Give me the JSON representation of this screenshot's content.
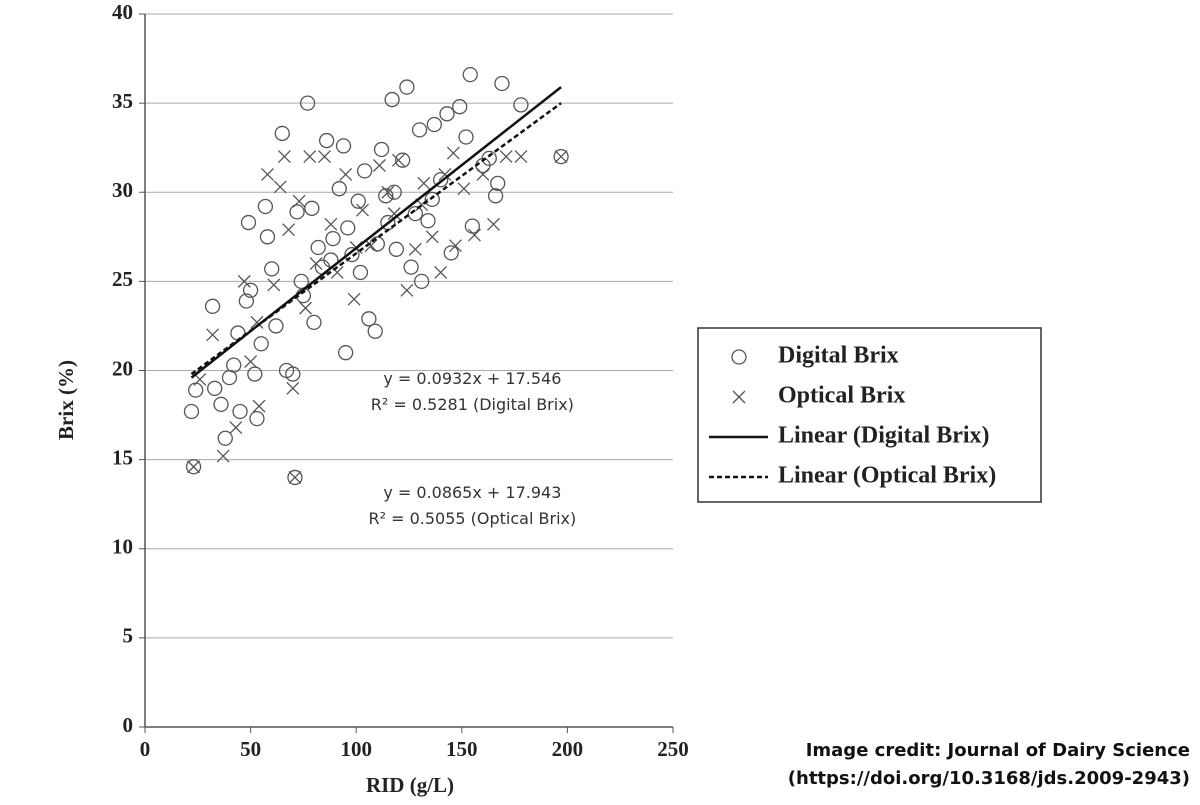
{
  "chart_data": {
    "type": "scatter",
    "x_label": "RID (g/L)",
    "y_label": "Brix (%)",
    "xlim": [
      0,
      250
    ],
    "xticks": [
      0,
      50,
      100,
      150,
      200,
      250
    ],
    "ylim": [
      0,
      40
    ],
    "yticks": [
      0,
      5,
      10,
      15,
      20,
      25,
      30,
      35,
      40
    ],
    "grid": true,
    "legend": "right",
    "series": [
      {
        "name": "Digital Brix",
        "marker": "circle",
        "color": "#555555",
        "x": [
          23,
          22,
          24,
          32,
          33,
          36,
          38,
          40,
          42,
          44,
          45,
          48,
          49,
          50,
          52,
          53,
          55,
          57,
          58,
          60,
          62,
          65,
          67,
          70,
          71,
          72,
          75,
          77,
          79,
          80,
          84,
          86,
          89,
          92,
          94,
          95,
          98,
          101,
          104,
          106,
          109,
          112,
          114,
          117,
          119,
          122,
          124,
          126,
          130,
          131,
          134,
          137,
          140,
          143,
          145,
          149,
          152,
          154,
          155,
          160,
          163,
          166,
          167,
          169,
          178,
          197,
          88,
          96,
          110,
          118,
          128,
          136,
          74,
          82,
          102,
          115
        ],
        "values": [
          14.6,
          17.7,
          18.9,
          23.6,
          19.0,
          18.1,
          16.2,
          19.6,
          20.3,
          22.1,
          17.7,
          23.9,
          28.3,
          24.5,
          19.8,
          17.3,
          21.5,
          29.2,
          27.5,
          25.7,
          22.5,
          33.3,
          20.0,
          19.8,
          14.0,
          28.9,
          24.2,
          35.0,
          29.1,
          22.7,
          25.8,
          32.9,
          27.4,
          30.2,
          32.6,
          21.0,
          26.5,
          29.5,
          31.2,
          22.9,
          22.2,
          32.4,
          29.8,
          35.2,
          26.8,
          31.8,
          35.9,
          25.8,
          33.5,
          25.0,
          28.4,
          33.8,
          30.7,
          34.4,
          26.6,
          34.8,
          33.1,
          36.6,
          28.1,
          31.5,
          31.9,
          29.8,
          30.5,
          36.1,
          34.9,
          32.0,
          26.2,
          28.0,
          27.1,
          30.0,
          28.8,
          29.6,
          25.0,
          26.9,
          25.5,
          28.3
        ]
      },
      {
        "name": "Optical Brix",
        "marker": "x",
        "color": "#555555",
        "x": [
          23,
          32,
          37,
          43,
          47,
          50,
          54,
          58,
          61,
          64,
          66,
          70,
          73,
          76,
          78,
          81,
          85,
          88,
          91,
          95,
          99,
          103,
          107,
          111,
          115,
          120,
          124,
          128,
          132,
          136,
          140,
          142,
          147,
          151,
          156,
          160,
          165,
          171,
          178,
          197,
          71,
          26,
          53,
          68,
          100,
          118,
          131,
          146
        ],
        "values": [
          14.6,
          22.0,
          15.2,
          16.8,
          25.0,
          20.5,
          18.0,
          31.0,
          24.8,
          30.3,
          32.0,
          19.0,
          29.5,
          23.5,
          32.0,
          26.0,
          32.0,
          28.2,
          25.5,
          31.0,
          24.0,
          29.0,
          27.0,
          31.5,
          30.0,
          31.8,
          24.5,
          26.8,
          30.5,
          27.5,
          25.5,
          31.0,
          27.0,
          30.2,
          27.6,
          31.0,
          28.2,
          32.0,
          32.0,
          32.0,
          14.0,
          19.5,
          22.7,
          27.9,
          26.9,
          28.8,
          29.3,
          32.2
        ]
      },
      {
        "name": "Linear (Digital Brix)",
        "marker": "line",
        "dash": "none",
        "color": "#111111",
        "x": [
          22,
          197
        ],
        "values": [
          19.6,
          35.9
        ]
      },
      {
        "name": "Linear (Optical Brix)",
        "marker": "line",
        "dash": "5,3",
        "color": "#111111",
        "x": [
          22,
          197
        ],
        "values": [
          19.8,
          35.0
        ]
      }
    ],
    "annotations": [
      {
        "lines": [
          "y = 0.0932x + 17.546",
          "R² = 0.5281 (Digital Brix)"
        ],
        "x": 155,
        "y": 19.5
      },
      {
        "lines": [
          "y = 0.0865x + 17.943",
          "R² = 0.5055 (Optical Brix)"
        ],
        "x": 155,
        "y": 13.1
      }
    ]
  },
  "credit": [
    "Image credit: Journal of Dairy Science",
    "(https://doi.org/10.3168/jds.2009-2943)"
  ]
}
